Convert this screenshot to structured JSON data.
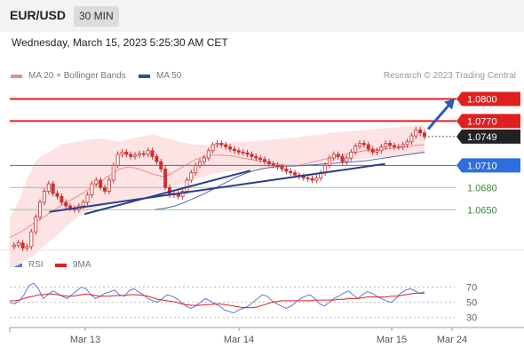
{
  "header": {
    "symbol": "EUR/USD",
    "interval": "30 MIN"
  },
  "datetime": "Wednesday, March 15, 2023 5:25:30 AM CET",
  "legend": [
    {
      "label": "MA 20 + Bollinger Bands",
      "color": "#f08a8a"
    },
    {
      "label": "MA 50",
      "color": "#2f4f8f"
    }
  ],
  "copyright": "Research © 2023 Trading Central",
  "rsi_legend": [
    {
      "label": "RSI",
      "color": "#5b7bd5"
    },
    {
      "label": "9MA",
      "color": "#e02020"
    }
  ],
  "colors": {
    "resistance": "#e02020",
    "pivot": "#2f6ee0",
    "support": "#8ed08e",
    "support_label": "#3a8a3a",
    "current": "#222222",
    "bb_fill": "#fde3e3",
    "ma20": "#f08a8a",
    "ma50": "#5565a8",
    "trend": "#2c3e8c",
    "candle": "#c83232"
  },
  "chart_data": {
    "type": "candlestick",
    "title": "EUR/USD",
    "interval": "30 MIN",
    "ylim": [
      1.0595,
      1.0815
    ],
    "x_tick_labels": [
      "Mar 13",
      "Mar 14",
      "Mar 15",
      "Mar 24"
    ],
    "levels": [
      {
        "label": "1.0800",
        "value": 1.08,
        "kind": "resistance"
      },
      {
        "label": "1.0770",
        "value": 1.077,
        "kind": "resistance"
      },
      {
        "label": "1.0749",
        "value": 1.0749,
        "kind": "current"
      },
      {
        "label": "1.0710",
        "value": 1.071,
        "kind": "pivot"
      },
      {
        "label": "1.0680",
        "value": 1.068,
        "kind": "support"
      },
      {
        "label": "1.0650",
        "value": 1.065,
        "kind": "support"
      }
    ],
    "close_series": [
      1.06,
      1.0602,
      1.0605,
      1.0598,
      1.06,
      1.062,
      1.064,
      1.066,
      1.0675,
      1.0685,
      1.0672,
      1.0668,
      1.066,
      1.0655,
      1.0652,
      1.065,
      1.0655,
      1.066,
      1.067,
      1.0685,
      1.069,
      1.068,
      1.0675,
      1.069,
      1.071,
      1.0725,
      1.0728,
      1.0725,
      1.0722,
      1.0724,
      1.0726,
      1.0725,
      1.073,
      1.0722,
      1.0715,
      1.0705,
      1.068,
      1.067,
      1.0672,
      1.0668,
      1.0675,
      1.069,
      1.07,
      1.071,
      1.0715,
      1.072,
      1.073,
      1.0738,
      1.074,
      1.0738,
      1.0735,
      1.0732,
      1.073,
      1.0728,
      1.0727,
      1.0725,
      1.0722,
      1.072,
      1.0718,
      1.0715,
      1.0712,
      1.071,
      1.0708,
      1.0705,
      1.0702,
      1.07,
      1.0697,
      1.0695,
      1.0693,
      1.0692,
      1.069,
      1.0693,
      1.07,
      1.071,
      1.072,
      1.0725,
      1.0722,
      1.0715,
      1.072,
      1.0728,
      1.0736,
      1.074,
      1.0738,
      1.0732,
      1.0728,
      1.073,
      1.0735,
      1.074,
      1.0737,
      1.0735,
      1.0735,
      1.0738,
      1.0742,
      1.075,
      1.0758,
      1.0754,
      1.0749
    ],
    "ma20_series": [
      1.0612,
      1.0618,
      1.0625,
      1.0633,
      1.064,
      1.0648,
      1.0655,
      1.0662,
      1.0668,
      1.0675,
      1.0682,
      1.069,
      1.0698,
      1.0705,
      1.0708,
      1.0706,
      1.0702,
      1.0698,
      1.0695,
      1.0698,
      1.0705,
      1.0712,
      1.0718,
      1.0722,
      1.0724,
      1.0724,
      1.0723,
      1.0721,
      1.0719,
      1.0717,
      1.0715,
      1.0713,
      1.0711,
      1.071,
      1.071,
      1.0712,
      1.0715,
      1.0718,
      1.072,
      1.0723,
      1.0726,
      1.0728,
      1.073,
      1.0731,
      1.0732,
      1.0733,
      1.0734,
      1.0735,
      1.0737,
      1.0738
    ],
    "bb_upper_series": [
      1.064,
      1.066,
      1.069,
      1.0715,
      1.0725,
      1.073,
      1.0738,
      1.074,
      1.0742,
      1.0744,
      1.0746,
      1.0746,
      1.0744,
      1.0742,
      1.0745,
      1.0748,
      1.075,
      1.0752,
      1.0748,
      1.0746,
      1.0742,
      1.074,
      1.0738,
      1.0738,
      1.0739,
      1.074,
      1.0741,
      1.0742,
      1.0742,
      1.0743,
      1.0744,
      1.0745,
      1.0746,
      1.0747,
      1.0748,
      1.075,
      1.0751,
      1.0752,
      1.0754,
      1.0755,
      1.0756,
      1.0757,
      1.0758,
      1.0759,
      1.076,
      1.0761,
      1.0762,
      1.0763,
      1.0764,
      1.0765
    ],
    "bb_lower_series": [
      1.057,
      1.0575,
      1.0582,
      1.059,
      1.06,
      1.061,
      1.062,
      1.063,
      1.064,
      1.0648,
      1.0652,
      1.0655,
      1.0658,
      1.066,
      1.0662,
      1.0664,
      1.0668,
      1.0672,
      1.0676,
      1.068,
      1.0684,
      1.0688,
      1.0692,
      1.0695,
      1.0698,
      1.07,
      1.0702,
      1.0703,
      1.0704,
      1.0705,
      1.0706,
      1.0707,
      1.0708,
      1.071,
      1.0711,
      1.0712,
      1.0713,
      1.0714,
      1.0715,
      1.0716,
      1.0717,
      1.0718,
      1.0719,
      1.072,
      1.0721,
      1.0722,
      1.0723,
      1.0724,
      1.0725,
      1.0726
    ],
    "ma50_series": [
      1.065,
      1.0652,
      1.0655,
      1.066,
      1.0666,
      1.0672,
      1.0679,
      1.0686,
      1.0693,
      1.0699,
      1.0703,
      1.0706,
      1.0708,
      1.0709,
      1.0709,
      1.071,
      1.0711,
      1.0712,
      1.0713,
      1.0714,
      1.0715,
      1.0716,
      1.0718,
      1.072,
      1.0722,
      1.0724,
      1.0726,
      1.0728
    ],
    "rsi": {
      "ylim": [
        25,
        80
      ],
      "ticks": [
        70,
        50,
        30
      ],
      "rsi_series": [
        50,
        48,
        52,
        60,
        72,
        75,
        68,
        55,
        60,
        65,
        62,
        58,
        55,
        60,
        65,
        70,
        68,
        60,
        55,
        58,
        62,
        64,
        66,
        60,
        58,
        65,
        68,
        64,
        60,
        55,
        52,
        50,
        55,
        60,
        58,
        55,
        50,
        45,
        42,
        45,
        50,
        55,
        52,
        48,
        45,
        40,
        38,
        36,
        40,
        42,
        45,
        50,
        55,
        60,
        58,
        52,
        48,
        45,
        42,
        45,
        50,
        55,
        58,
        60,
        55,
        48,
        45,
        50,
        55,
        58,
        62,
        65,
        60,
        55,
        60,
        64,
        62,
        58,
        55,
        52,
        50,
        55,
        62,
        66,
        68,
        65,
        62,
        64
      ],
      "ma_series": [
        52,
        52,
        53,
        55,
        57,
        58,
        60,
        60,
        61,
        61,
        60,
        59,
        58,
        58,
        59,
        60,
        61,
        60,
        59,
        58,
        58,
        58,
        59,
        59,
        59,
        60,
        60,
        60,
        59,
        58,
        56,
        54,
        53,
        52,
        51,
        50,
        48,
        47,
        46,
        46,
        46,
        47,
        47,
        48,
        48,
        47,
        46,
        45,
        44,
        43,
        43,
        43,
        44,
        46,
        48,
        50,
        51,
        52,
        52,
        52,
        52,
        52,
        52,
        52,
        53,
        53,
        53,
        53,
        53,
        54,
        54,
        55,
        55,
        55,
        56,
        57,
        57,
        57,
        57,
        57,
        58,
        58,
        59,
        60,
        61,
        62,
        62,
        62
      ]
    },
    "trendlines": [
      {
        "from": {
          "x": 0.095,
          "y": 1.0647
        },
        "to": {
          "x": 0.905,
          "y": 1.0712
        }
      },
      {
        "from": {
          "x": 0.18,
          "y": 1.0644
        },
        "to": {
          "x": 0.58,
          "y": 1.0703
        }
      }
    ],
    "target_arrow": {
      "from_price": 1.0759,
      "to_price": 1.08
    }
  }
}
